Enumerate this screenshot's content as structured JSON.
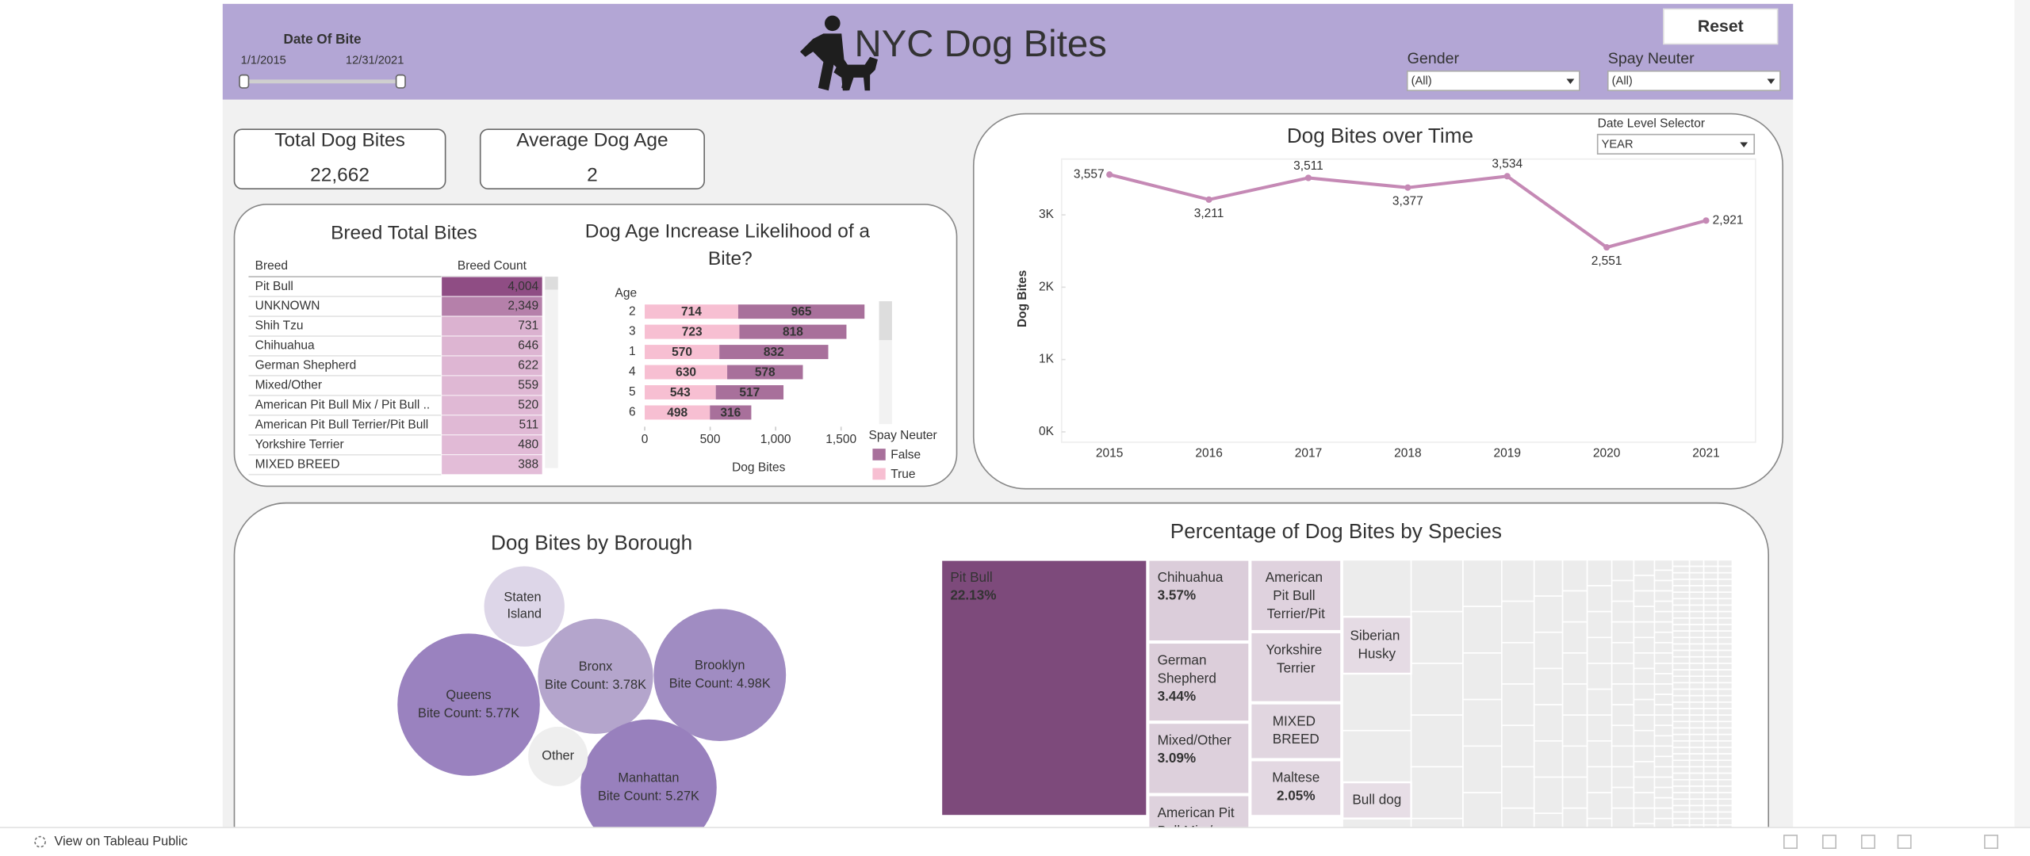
{
  "header": {
    "title": "NYC Dog Bites",
    "reset": "Reset"
  },
  "filters": {
    "date": {
      "label": "Date Of Bite",
      "start": "1/1/2015",
      "end": "12/31/2021"
    },
    "gender": {
      "label": "Gender",
      "value": "(All)"
    },
    "spay_neuter": {
      "label": "Spay Neuter",
      "value": "(All)"
    },
    "date_level": {
      "label": "Date Level Selector",
      "value": "YEAR"
    }
  },
  "kpis": [
    {
      "label": "Total Dog Bites",
      "value": 22662,
      "value_label": "22,662"
    },
    {
      "label": "Average Dog Age",
      "value": 2,
      "value_label": "2"
    }
  ],
  "chart_data": [
    {
      "type": "table",
      "title": "Breed Total Bites",
      "columns": [
        "Breed",
        "Breed Count"
      ],
      "categories": [
        "Pit Bull",
        "UNKNOWN",
        "Shih Tzu",
        "Chihuahua",
        "German Shepherd",
        "Mixed/Other",
        "American Pit Bull Mix / Pit Bull ..",
        "American Pit Bull Terrier/Pit Bull",
        "Yorkshire Terrier",
        "MIXED BREED"
      ],
      "values": [
        4004,
        2349,
        731,
        646,
        622,
        559,
        520,
        511,
        480,
        388
      ],
      "value_labels": [
        "4,004",
        "2,349",
        "731",
        "646",
        "622",
        "559",
        "520",
        "511",
        "480",
        "388"
      ],
      "color_range": [
        "#ecc9e1",
        "#8f4d84"
      ]
    },
    {
      "type": "bar",
      "orientation": "horizontal",
      "stacked": true,
      "title": "Dog Age Increase Likelihood of a Bite?",
      "y_label": "Age",
      "x_label": "Dog Bites",
      "categories": [
        "2",
        "3",
        "1",
        "4",
        "5",
        "6"
      ],
      "series": [
        {
          "name": "True",
          "color": "#f7bfd2",
          "values": [
            714,
            723,
            570,
            630,
            543,
            498
          ]
        },
        {
          "name": "False",
          "color": "#a8709b",
          "values": [
            965,
            818,
            832,
            578,
            517,
            316
          ]
        }
      ],
      "xlim": [
        0,
        1800
      ],
      "xticks": [
        0,
        500,
        {
          "value": 1000,
          "label": "1,000"
        },
        {
          "value": 1500,
          "label": "1,500"
        }
      ],
      "legend_title": "Spay Neuter"
    },
    {
      "type": "line",
      "title": "Dog Bites over Time",
      "y_label": "Dog Bites",
      "categories": [
        "2015",
        "2016",
        "2017",
        "2018",
        "2019",
        "2020",
        "2021"
      ],
      "series": [
        {
          "name": "Dog Bites",
          "color": "#c589b5",
          "values": [
            3557,
            3211,
            3511,
            3377,
            3534,
            2551,
            2921
          ],
          "value_labels": [
            "3,557",
            "3,211",
            "3,511",
            "3,377",
            "3,534",
            "2,551",
            "2,921"
          ]
        }
      ],
      "ylim": [
        0,
        3700
      ],
      "yticks": [
        {
          "value": 0,
          "label": "0K"
        },
        {
          "value": 1000,
          "label": "1K"
        },
        {
          "value": 2000,
          "label": "2K"
        },
        {
          "value": 3000,
          "label": "3K"
        }
      ]
    },
    {
      "type": "bubble",
      "title": "Dog Bites by Borough",
      "categories": [
        "Staten Island",
        "Bronx",
        "Brooklyn",
        "Queens",
        "Manhattan",
        "Other"
      ],
      "values": [
        1840,
        3780,
        4980,
        5770,
        5270,
        1010
      ],
      "value_labels": [
        null,
        "Bite Count: 3.78K",
        "Bite Count: 4.98K",
        "Bite Count: 5.77K",
        "Bite Count: 5.27K",
        null
      ],
      "colors": [
        "#ddd6e8",
        "#b4a5cc",
        "#a08cc2",
        "#9a82bf",
        "#9880bd",
        "#eeeeee"
      ]
    },
    {
      "type": "treemap",
      "title": "Percentage of Dog Bites by Species",
      "categories": [
        "Pit Bull",
        "Chihuahua",
        "German Shepherd",
        "Mixed/Other",
        "American Pit Bull Mix / Pit Bull",
        "American Pit Bull Terrier/Pit",
        "Yorkshire Terrier",
        "MIXED BREED",
        "Maltese",
        "Siberian Husky",
        "Bull dog"
      ],
      "values": [
        22.13,
        3.57,
        3.44,
        3.09,
        2.9,
        2.8,
        2.5,
        2.3,
        2.05,
        1.6,
        1.2
      ],
      "value_labels": [
        "22.13%",
        "3.57%",
        "3.44%",
        "3.09%",
        null,
        null,
        null,
        null,
        "2.05%",
        null,
        null
      ],
      "color_range": [
        "#ede6ec",
        "#7d4a7b"
      ]
    }
  ],
  "footer": {
    "link": "View on Tableau Public"
  }
}
